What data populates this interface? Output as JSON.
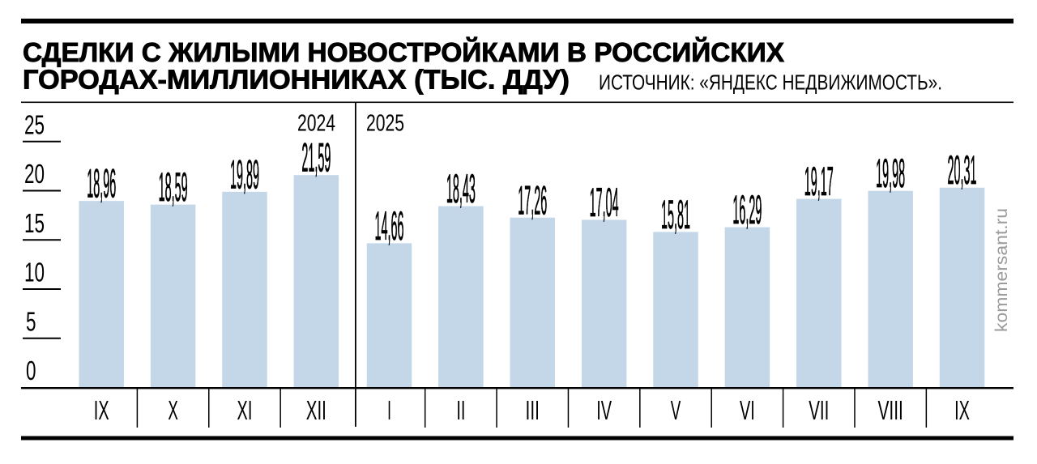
{
  "title": {
    "line1": "СДЕЛКИ С ЖИЛЫМИ НОВОСТРОЙКАМИ В РОССИЙСКИХ",
    "line2": "ГОРОДАХ-МИЛЛИОННИКАХ (ТЫС. ДДУ)"
  },
  "source": "ИСТОЧНИК: «ЯНДЕКС НЕДВИЖИМОСТЬ».",
  "watermark": "kommersant.ru",
  "colors": {
    "bar": "#c3d7e9",
    "axis": "#000000",
    "watermark": "#9b9b9b"
  },
  "chart_data": {
    "type": "bar",
    "title": "СДЕЛКИ С ЖИЛЫМИ НОВОСТРОЙКАМИ В РОССИЙСКИХ ГОРОДАХ-МИЛЛИОННИКАХ (ТЫС. ДДУ)",
    "ylim": [
      0,
      25
    ],
    "yticks": [
      0,
      5,
      10,
      15,
      20,
      25
    ],
    "grid": false,
    "legend": false,
    "groups": [
      {
        "year": "2024",
        "categories": [
          "IX",
          "X",
          "XI",
          "XII"
        ],
        "values": [
          18.96,
          18.59,
          19.89,
          21.59
        ],
        "labels": [
          "18,96",
          "18,59",
          "19,89",
          "21,59"
        ]
      },
      {
        "year": "2025",
        "categories": [
          "I",
          "II",
          "III",
          "IV",
          "V",
          "VI",
          "VII",
          "VIII",
          "IX"
        ],
        "values": [
          14.66,
          18.43,
          17.26,
          17.04,
          15.81,
          16.29,
          19.17,
          19.98,
          20.31
        ],
        "labels": [
          "14,66",
          "18,43",
          "17,26",
          "17,04",
          "15,81",
          "16,29",
          "19,17",
          "19,98",
          "20,31"
        ]
      }
    ]
  }
}
